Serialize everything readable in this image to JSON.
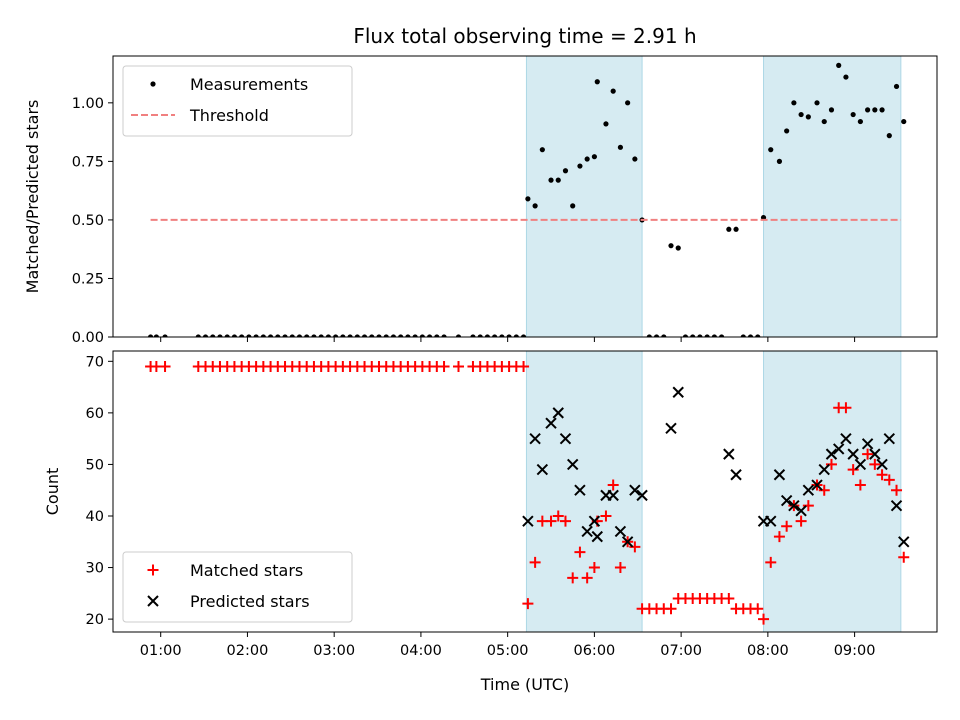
{
  "chart_data": [
    {
      "type": "scatter",
      "title": "Flux total observing time = 2.91 h",
      "xlabel": "",
      "ylabel": "Matched/Predicted stars",
      "xlim": [
        "00:27",
        "09:57"
      ],
      "ylim": [
        0,
        1.2
      ],
      "yticks": [
        "0.00",
        "0.25",
        "0.50",
        "0.75",
        "1.00"
      ],
      "legend_position": "top-left",
      "shaded_intervals": [
        [
          "05:13",
          "06:33"
        ],
        [
          "07:57",
          "09:32"
        ]
      ],
      "series": [
        {
          "name": "Measurements",
          "marker": "dot",
          "color": "#000000",
          "points": [
            [
              "00:53",
              0
            ],
            [
              "00:57",
              0
            ],
            [
              "01:03",
              0
            ],
            [
              "01:26",
              0
            ],
            [
              "01:31",
              0
            ],
            [
              "01:36",
              0
            ],
            [
              "01:41",
              0
            ],
            [
              "01:46",
              0
            ],
            [
              "01:51",
              0
            ],
            [
              "01:56",
              0
            ],
            [
              "02:01",
              0
            ],
            [
              "02:06",
              0
            ],
            [
              "02:11",
              0
            ],
            [
              "02:16",
              0
            ],
            [
              "02:21",
              0
            ],
            [
              "02:26",
              0
            ],
            [
              "02:31",
              0
            ],
            [
              "02:36",
              0
            ],
            [
              "02:41",
              0
            ],
            [
              "02:46",
              0
            ],
            [
              "02:51",
              0
            ],
            [
              "02:56",
              0
            ],
            [
              "03:01",
              0
            ],
            [
              "03:06",
              0
            ],
            [
              "03:11",
              0
            ],
            [
              "03:16",
              0
            ],
            [
              "03:21",
              0
            ],
            [
              "03:26",
              0
            ],
            [
              "03:31",
              0
            ],
            [
              "03:36",
              0
            ],
            [
              "03:41",
              0
            ],
            [
              "03:46",
              0
            ],
            [
              "03:51",
              0
            ],
            [
              "03:56",
              0
            ],
            [
              "04:01",
              0
            ],
            [
              "04:06",
              0
            ],
            [
              "04:11",
              0
            ],
            [
              "04:16",
              0
            ],
            [
              "04:26",
              0
            ],
            [
              "04:36",
              0
            ],
            [
              "04:41",
              0
            ],
            [
              "04:46",
              0
            ],
            [
              "04:51",
              0
            ],
            [
              "04:56",
              0
            ],
            [
              "05:01",
              0
            ],
            [
              "05:06",
              0
            ],
            [
              "05:11",
              0
            ],
            [
              "05:14",
              0.59
            ],
            [
              "05:19",
              0.56
            ],
            [
              "05:24",
              0.8
            ],
            [
              "05:30",
              0.67
            ],
            [
              "05:35",
              0.67
            ],
            [
              "05:40",
              0.71
            ],
            [
              "05:45",
              0.56
            ],
            [
              "05:50",
              0.73
            ],
            [
              "05:55",
              0.76
            ],
            [
              "06:00",
              0.77
            ],
            [
              "06:02",
              1.09
            ],
            [
              "06:08",
              0.91
            ],
            [
              "06:13",
              1.05
            ],
            [
              "06:18",
              0.81
            ],
            [
              "06:23",
              1.0
            ],
            [
              "06:28",
              0.76
            ],
            [
              "06:33",
              0.5
            ],
            [
              "06:38",
              0
            ],
            [
              "06:43",
              0
            ],
            [
              "06:48",
              0
            ],
            [
              "06:53",
              0.39
            ],
            [
              "06:58",
              0.38
            ],
            [
              "07:03",
              0
            ],
            [
              "07:08",
              0
            ],
            [
              "07:13",
              0
            ],
            [
              "07:18",
              0
            ],
            [
              "07:23",
              0
            ],
            [
              "07:28",
              0
            ],
            [
              "07:33",
              0.46
            ],
            [
              "07:38",
              0.46
            ],
            [
              "07:43",
              0
            ],
            [
              "07:48",
              0
            ],
            [
              "07:53",
              0
            ],
            [
              "07:57",
              0.51
            ],
            [
              "08:02",
              0.8
            ],
            [
              "08:08",
              0.75
            ],
            [
              "08:13",
              0.88
            ],
            [
              "08:18",
              1.0
            ],
            [
              "08:23",
              0.95
            ],
            [
              "08:28",
              0.94
            ],
            [
              "08:34",
              1.0
            ],
            [
              "08:39",
              0.92
            ],
            [
              "08:44",
              0.97
            ],
            [
              "08:49",
              1.16
            ],
            [
              "08:54",
              1.11
            ],
            [
              "08:59",
              0.95
            ],
            [
              "09:04",
              0.92
            ],
            [
              "09:09",
              0.97
            ],
            [
              "09:14",
              0.97
            ],
            [
              "09:19",
              0.97
            ],
            [
              "09:24",
              0.86
            ],
            [
              "09:29",
              1.07
            ],
            [
              "09:34",
              0.92
            ]
          ]
        },
        {
          "name": "Threshold",
          "marker": "dashed-line",
          "color": "#f08080",
          "points": [
            [
              "00:53",
              0.5
            ],
            [
              "09:32",
              0.5
            ]
          ]
        }
      ]
    },
    {
      "type": "scatter",
      "title": "",
      "xlabel": "Time (UTC)",
      "ylabel": "Count",
      "xlim": [
        "00:27",
        "09:57"
      ],
      "ylim": [
        17.5,
        72
      ],
      "yticks": [
        "20",
        "30",
        "40",
        "50",
        "60",
        "70"
      ],
      "xticks": [
        "01:00",
        "02:00",
        "03:00",
        "04:00",
        "05:00",
        "06:00",
        "07:00",
        "08:00",
        "09:00"
      ],
      "legend_position": "bottom-left",
      "shaded_intervals": [
        [
          "05:13",
          "06:33"
        ],
        [
          "07:57",
          "09:32"
        ]
      ],
      "series": [
        {
          "name": "Matched stars",
          "marker": "plus",
          "color": "#ff0000",
          "points": [
            [
              "00:53",
              69
            ],
            [
              "00:57",
              69
            ],
            [
              "01:03",
              69
            ],
            [
              "01:26",
              69
            ],
            [
              "01:31",
              69
            ],
            [
              "01:36",
              69
            ],
            [
              "01:41",
              69
            ],
            [
              "01:46",
              69
            ],
            [
              "01:51",
              69
            ],
            [
              "01:56",
              69
            ],
            [
              "02:01",
              69
            ],
            [
              "02:06",
              69
            ],
            [
              "02:11",
              69
            ],
            [
              "02:16",
              69
            ],
            [
              "02:21",
              69
            ],
            [
              "02:26",
              69
            ],
            [
              "02:31",
              69
            ],
            [
              "02:36",
              69
            ],
            [
              "02:41",
              69
            ],
            [
              "02:46",
              69
            ],
            [
              "02:51",
              69
            ],
            [
              "02:56",
              69
            ],
            [
              "03:01",
              69
            ],
            [
              "03:06",
              69
            ],
            [
              "03:11",
              69
            ],
            [
              "03:16",
              69
            ],
            [
              "03:21",
              69
            ],
            [
              "03:26",
              69
            ],
            [
              "03:31",
              69
            ],
            [
              "03:36",
              69
            ],
            [
              "03:41",
              69
            ],
            [
              "03:46",
              69
            ],
            [
              "03:51",
              69
            ],
            [
              "03:56",
              69
            ],
            [
              "04:01",
              69
            ],
            [
              "04:06",
              69
            ],
            [
              "04:11",
              69
            ],
            [
              "04:16",
              69
            ],
            [
              "04:26",
              69
            ],
            [
              "04:36",
              69
            ],
            [
              "04:41",
              69
            ],
            [
              "04:46",
              69
            ],
            [
              "04:51",
              69
            ],
            [
              "04:56",
              69
            ],
            [
              "05:01",
              69
            ],
            [
              "05:06",
              69
            ],
            [
              "05:11",
              69
            ],
            [
              "05:14",
              23
            ],
            [
              "05:19",
              31
            ],
            [
              "05:24",
              39
            ],
            [
              "05:30",
              39
            ],
            [
              "05:35",
              40
            ],
            [
              "05:40",
              39
            ],
            [
              "05:45",
              28
            ],
            [
              "05:50",
              33
            ],
            [
              "05:55",
              28
            ],
            [
              "06:00",
              30
            ],
            [
              "06:02",
              39
            ],
            [
              "06:08",
              40
            ],
            [
              "06:13",
              46
            ],
            [
              "06:18",
              30
            ],
            [
              "06:23",
              35
            ],
            [
              "06:28",
              34
            ],
            [
              "06:33",
              22
            ],
            [
              "06:38",
              22
            ],
            [
              "06:43",
              22
            ],
            [
              "06:48",
              22
            ],
            [
              "06:53",
              22
            ],
            [
              "06:58",
              24
            ],
            [
              "07:03",
              24
            ],
            [
              "07:08",
              24
            ],
            [
              "07:13",
              24
            ],
            [
              "07:18",
              24
            ],
            [
              "07:23",
              24
            ],
            [
              "07:28",
              24
            ],
            [
              "07:33",
              24
            ],
            [
              "07:38",
              22
            ],
            [
              "07:43",
              22
            ],
            [
              "07:48",
              22
            ],
            [
              "07:53",
              22
            ],
            [
              "07:57",
              20
            ],
            [
              "08:02",
              31
            ],
            [
              "08:08",
              36
            ],
            [
              "08:13",
              38
            ],
            [
              "08:18",
              42
            ],
            [
              "08:23",
              39
            ],
            [
              "08:28",
              42
            ],
            [
              "08:34",
              46
            ],
            [
              "08:39",
              45
            ],
            [
              "08:44",
              50
            ],
            [
              "08:49",
              61
            ],
            [
              "08:54",
              61
            ],
            [
              "08:59",
              49
            ],
            [
              "09:04",
              46
            ],
            [
              "09:09",
              52
            ],
            [
              "09:14",
              50
            ],
            [
              "09:19",
              48
            ],
            [
              "09:24",
              47
            ],
            [
              "09:29",
              45
            ],
            [
              "09:34",
              32
            ]
          ]
        },
        {
          "name": "Predicted stars",
          "marker": "x",
          "color": "#000000",
          "points": [
            [
              "05:14",
              39
            ],
            [
              "05:19",
              55
            ],
            [
              "05:24",
              49
            ],
            [
              "05:30",
              58
            ],
            [
              "05:35",
              60
            ],
            [
              "05:40",
              55
            ],
            [
              "05:45",
              50
            ],
            [
              "05:50",
              45
            ],
            [
              "05:55",
              37
            ],
            [
              "06:00",
              39
            ],
            [
              "06:02",
              36
            ],
            [
              "06:08",
              44
            ],
            [
              "06:13",
              44
            ],
            [
              "06:18",
              37
            ],
            [
              "06:23",
              35
            ],
            [
              "06:28",
              45
            ],
            [
              "06:33",
              44
            ],
            [
              "06:53",
              57
            ],
            [
              "06:58",
              64
            ],
            [
              "07:33",
              52
            ],
            [
              "07:38",
              48
            ],
            [
              "07:57",
              39
            ],
            [
              "08:02",
              39
            ],
            [
              "08:08",
              48
            ],
            [
              "08:13",
              43
            ],
            [
              "08:18",
              42
            ],
            [
              "08:23",
              41
            ],
            [
              "08:28",
              45
            ],
            [
              "08:34",
              46
            ],
            [
              "08:39",
              49
            ],
            [
              "08:44",
              52
            ],
            [
              "08:49",
              53
            ],
            [
              "08:54",
              55
            ],
            [
              "08:59",
              52
            ],
            [
              "09:04",
              50
            ],
            [
              "09:09",
              54
            ],
            [
              "09:14",
              52
            ],
            [
              "09:19",
              50
            ],
            [
              "09:24",
              55
            ],
            [
              "09:29",
              42
            ],
            [
              "09:34",
              35
            ]
          ]
        }
      ]
    }
  ]
}
